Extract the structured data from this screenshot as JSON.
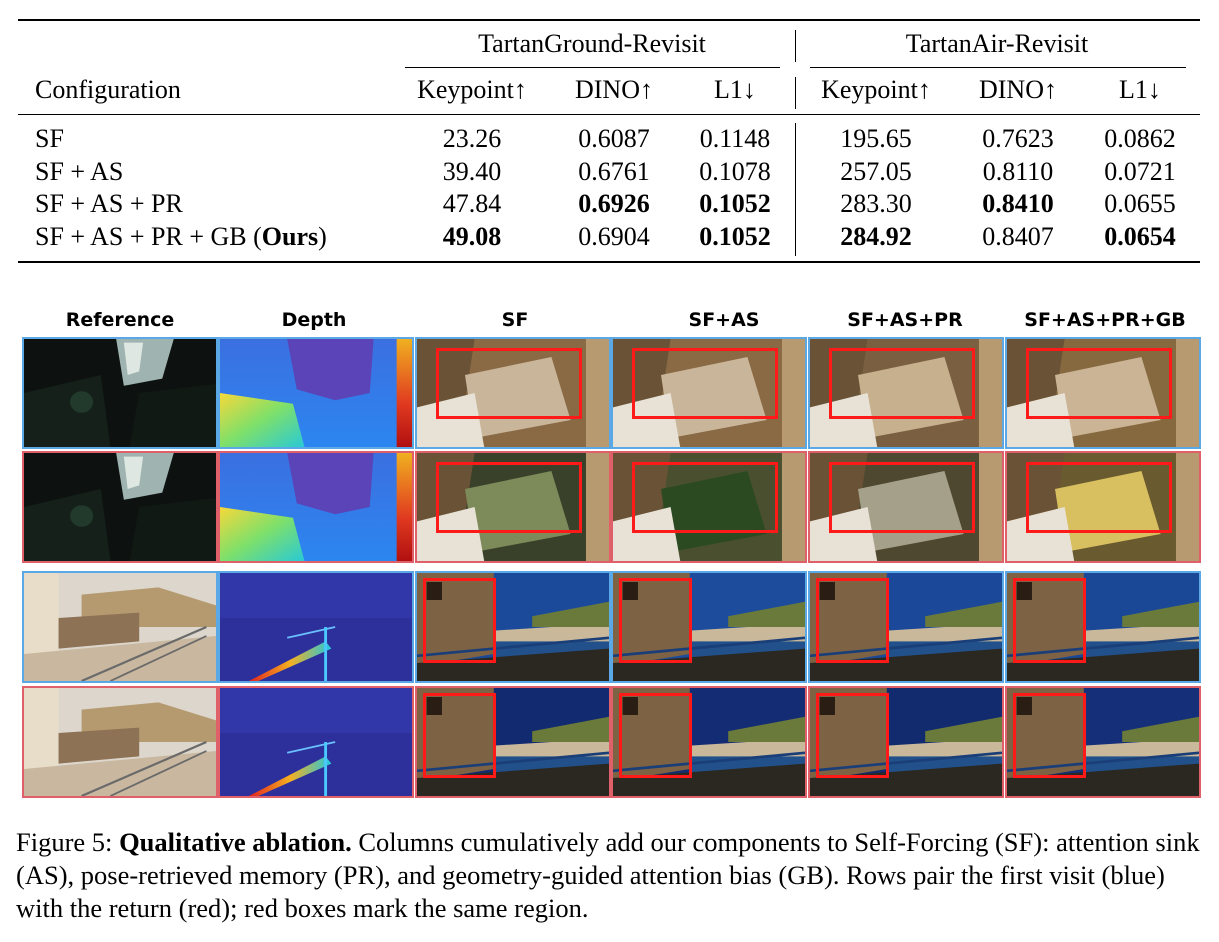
{
  "table": {
    "group_headers": [
      "TartanGround-Revisit",
      "TartanAir-Revisit"
    ],
    "config_header": "Configuration",
    "metric_headers": [
      "Keypoint↑",
      "DINO↑",
      "L1↓",
      "Keypoint↑",
      "DINO↑",
      "L1↓"
    ],
    "rows": [
      {
        "config": "SF",
        "config_bold": "",
        "config_close": "",
        "values": [
          "23.26",
          "0.6087",
          "0.1148",
          "195.65",
          "0.7623",
          "0.0862"
        ],
        "bold": [
          false,
          false,
          false,
          false,
          false,
          false
        ]
      },
      {
        "config": "SF + AS",
        "config_bold": "",
        "config_close": "",
        "values": [
          "39.40",
          "0.6761",
          "0.1078",
          "257.05",
          "0.8110",
          "0.0721"
        ],
        "bold": [
          false,
          false,
          false,
          false,
          false,
          false
        ]
      },
      {
        "config": "SF + AS + PR",
        "config_bold": "",
        "config_close": "",
        "values": [
          "47.84",
          "0.6926",
          "0.1052",
          "283.30",
          "0.8410",
          "0.0655"
        ],
        "bold": [
          false,
          true,
          true,
          false,
          true,
          false
        ]
      },
      {
        "config": "SF + AS + PR + GB (",
        "config_bold": "Ours",
        "config_close": ")",
        "values": [
          "49.08",
          "0.6904",
          "0.1052",
          "284.92",
          "0.8407",
          "0.0654"
        ],
        "bold": [
          true,
          false,
          true,
          true,
          false,
          true
        ]
      }
    ]
  },
  "figure": {
    "column_headers": [
      "Reference",
      "Depth",
      "SF",
      "SF+AS",
      "SF+AS+PR",
      "SF+AS+PR+GB"
    ],
    "row_kinds": [
      "first",
      "return",
      "first",
      "return"
    ],
    "colors": {
      "first_visit_border": "#5aa9e6",
      "return_border": "#e0606a",
      "highlight_box": "#ff1a1a"
    }
  },
  "caption": {
    "label": "Figure 5: ",
    "bold_title": "Qualitative ablation.",
    "text": " Columns cumulatively add our components to Self-Forcing (SF): attention sink (AS), pose-retrieved memory (PR), and geometry-guided attention bias (GB). Rows pair the first visit (blue) with the return (red); red boxes mark the same region."
  }
}
